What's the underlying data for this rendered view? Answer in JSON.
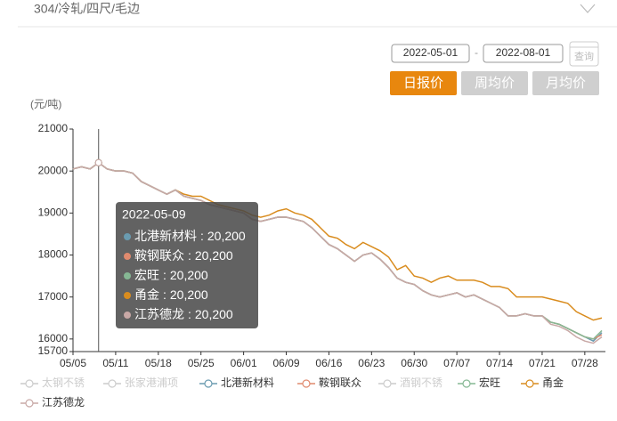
{
  "header": {
    "title": "304/冷轧/四尺/毛边"
  },
  "controls": {
    "start_date": "2022-05-01",
    "separator": "-",
    "end_date": "2022-08-01",
    "query": "查询",
    "buttons": [
      "日报价",
      "周均价",
      "月均价"
    ],
    "active": 0
  },
  "chart_data": {
    "type": "line",
    "y_label": "(元/吨)",
    "categories": [
      "05/05",
      null,
      null,
      null,
      null,
      "05/11",
      null,
      null,
      null,
      null,
      "05/18",
      null,
      null,
      null,
      null,
      "05/25",
      null,
      null,
      null,
      null,
      "06/01",
      null,
      null,
      null,
      null,
      "06/09",
      null,
      null,
      null,
      null,
      "06/16",
      null,
      null,
      null,
      null,
      "06/23",
      null,
      null,
      null,
      null,
      "06/30",
      null,
      null,
      null,
      null,
      "07/07",
      null,
      null,
      null,
      null,
      "07/14",
      null,
      null,
      null,
      null,
      "07/21",
      null,
      null,
      null,
      null,
      "07/28",
      null,
      null
    ],
    "ylim": [
      15700,
      21000
    ],
    "yticks": [
      15700,
      16000,
      17000,
      18000,
      19000,
      20000,
      21000
    ],
    "grid": false,
    "series": [
      {
        "name": "太钢不锈",
        "color": "#cccccc",
        "hidden": true
      },
      {
        "name": "张家港浦项",
        "color": "#cccccc",
        "hidden": true
      },
      {
        "name": "北港新材料",
        "color": "#6a9bb0",
        "values": [
          20050,
          20100,
          20050,
          20200,
          20050,
          20000,
          20000,
          19950,
          19750,
          19650,
          19550,
          19450,
          19550,
          19400,
          19350,
          19300,
          19200,
          19150,
          19100,
          19050,
          19000,
          18850,
          18800,
          18850,
          18900,
          18900,
          18850,
          18800,
          18650,
          18450,
          18250,
          18150,
          18000,
          17850,
          18000,
          18050,
          17900,
          17700,
          17450,
          17350,
          17300,
          17150,
          17050,
          17000,
          17050,
          17100,
          17000,
          17050,
          16950,
          16850,
          16750,
          16550,
          16550,
          16600,
          16550,
          16550,
          16400,
          16350,
          16250,
          16150,
          16050,
          15950,
          16150
        ]
      },
      {
        "name": "鞍钢联众",
        "color": "#e08a6e",
        "values": [
          20050,
          20100,
          20050,
          20200,
          20050,
          20000,
          20000,
          19950,
          19750,
          19650,
          19550,
          19450,
          19550,
          19400,
          19350,
          19300,
          19200,
          19150,
          19100,
          19050,
          19000,
          18850,
          18800,
          18850,
          18900,
          18900,
          18850,
          18800,
          18650,
          18450,
          18250,
          18150,
          18000,
          17850,
          18000,
          18050,
          17900,
          17700,
          17450,
          17350,
          17300,
          17150,
          17050,
          17000,
          17050,
          17100,
          17000,
          17050,
          16950,
          16850,
          16750,
          16550,
          16550,
          16600,
          16550,
          16550,
          16400,
          16350,
          16250,
          16150,
          16050,
          16000,
          16100
        ]
      },
      {
        "name": "酒钢不锈",
        "color": "#cccccc",
        "hidden": true
      },
      {
        "name": "宏旺",
        "color": "#86b894",
        "values": [
          20050,
          20100,
          20050,
          20200,
          20050,
          20000,
          20000,
          19950,
          19750,
          19650,
          19550,
          19450,
          19550,
          19400,
          19350,
          19300,
          19200,
          19150,
          19100,
          19050,
          19000,
          18850,
          18800,
          18850,
          18900,
          18900,
          18850,
          18800,
          18650,
          18450,
          18250,
          18150,
          18000,
          17850,
          18000,
          18050,
          17900,
          17700,
          17450,
          17350,
          17300,
          17150,
          17050,
          17000,
          17050,
          17100,
          17000,
          17050,
          16950,
          16850,
          16750,
          16550,
          16550,
          16600,
          16550,
          16550,
          16400,
          16350,
          16250,
          16150,
          16050,
          16000,
          16200
        ]
      },
      {
        "name": "甬金",
        "color": "#d98c1e",
        "values": [
          20050,
          20100,
          20050,
          20200,
          20050,
          20000,
          20000,
          19950,
          19750,
          19650,
          19550,
          19450,
          19550,
          19450,
          19400,
          19400,
          19300,
          19200,
          19150,
          19100,
          19050,
          18950,
          18900,
          18950,
          19050,
          19100,
          19000,
          18950,
          18850,
          18650,
          18450,
          18400,
          18250,
          18150,
          18300,
          18200,
          18100,
          17950,
          17650,
          17750,
          17500,
          17450,
          17350,
          17450,
          17500,
          17400,
          17400,
          17400,
          17350,
          17250,
          17250,
          17200,
          17000,
          17000,
          17000,
          17000,
          16950,
          16900,
          16850,
          16650,
          16550,
          16450,
          16500
        ]
      },
      {
        "name": "江苏德龙",
        "color": "#c8a8a6",
        "values": [
          20050,
          20100,
          20050,
          20200,
          20050,
          20000,
          20000,
          19950,
          19750,
          19650,
          19550,
          19450,
          19550,
          19400,
          19350,
          19300,
          19200,
          19150,
          19100,
          19050,
          19000,
          18850,
          18800,
          18850,
          18900,
          18900,
          18850,
          18800,
          18650,
          18450,
          18250,
          18150,
          18000,
          17850,
          18000,
          18050,
          17900,
          17700,
          17450,
          17350,
          17300,
          17150,
          17050,
          17000,
          17050,
          17100,
          17000,
          17050,
          16950,
          16850,
          16750,
          16550,
          16550,
          16600,
          16550,
          16550,
          16350,
          16300,
          16200,
          16050,
          15950,
          15900,
          16050
        ]
      }
    ],
    "tooltip": {
      "title": "2022-05-09",
      "items": [
        {
          "name": "北港新材料",
          "value": 20200,
          "label": "20,200"
        },
        {
          "name": "鞍钢联众",
          "value": 20200,
          "label": "20,200"
        },
        {
          "name": "宏旺",
          "value": 20200,
          "label": "20,200"
        },
        {
          "name": "甬金",
          "value": 20200,
          "label": "20,200"
        },
        {
          "name": "江苏德龙",
          "value": 20200,
          "label": "20,200"
        }
      ]
    }
  }
}
